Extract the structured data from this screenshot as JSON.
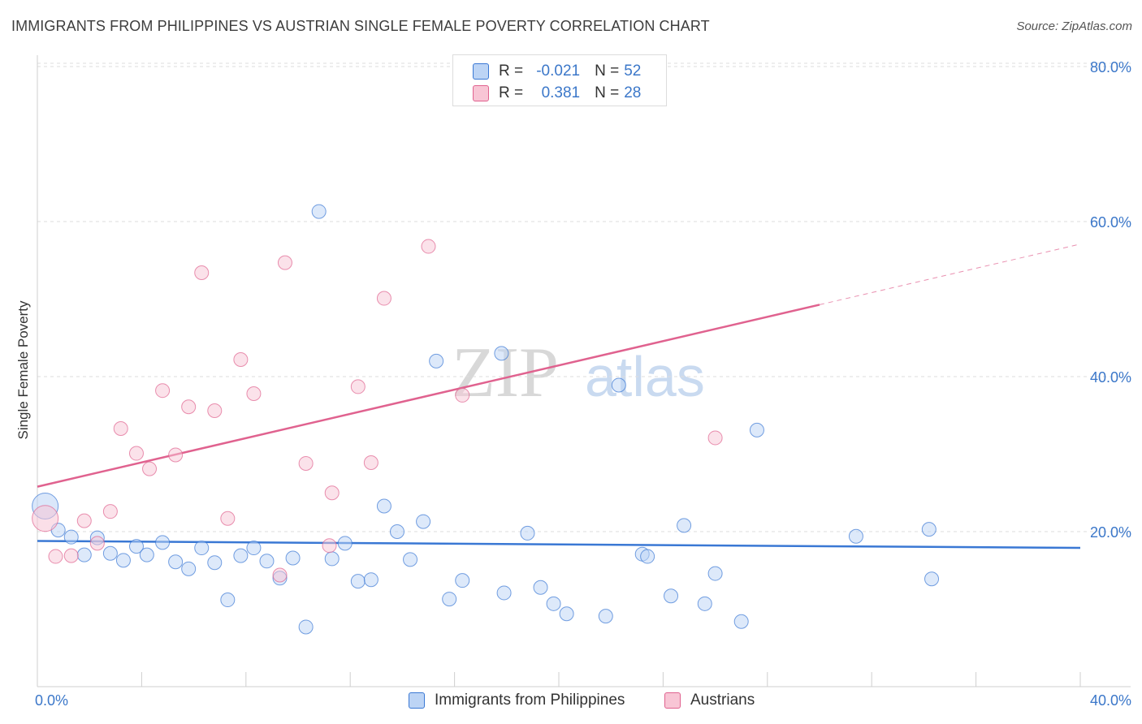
{
  "title": "IMMIGRANTS FROM PHILIPPINES VS AUSTRIAN SINGLE FEMALE POVERTY CORRELATION CHART",
  "source": "Source: ZipAtlas.com",
  "colors": {
    "blue": "#3a78d4",
    "blue_fill": "#bcd4f5",
    "pink": "#e0628f",
    "pink_fill": "#f8c5d5",
    "tick_text": "#3b77c9"
  },
  "legend": {
    "rows": [
      {
        "r_label": "R =",
        "r_value": "-0.021",
        "n_label": "N =",
        "n_value": "52"
      },
      {
        "r_label": "R =",
        "r_value": "0.381",
        "n_label": "N =",
        "n_value": "28"
      }
    ]
  },
  "bottom_legend": {
    "series1": "Immigrants from Philippines",
    "series2": "Austrians"
  },
  "watermark": {
    "part1": "ZIP",
    "part2": "atlas"
  },
  "chart_data": {
    "type": "scatter",
    "title": "IMMIGRANTS FROM PHILIPPINES VS AUSTRIAN SINGLE FEMALE POVERTY CORRELATION CHART",
    "xlabel": "",
    "ylabel": "Single Female Poverty",
    "xlim": [
      0,
      40
    ],
    "ylim": [
      0,
      80
    ],
    "x_tick_labels": [
      "0.0%",
      "40.0%"
    ],
    "y_tick_values": [
      20,
      40,
      60,
      80
    ],
    "y_tick_labels": [
      "20.0%",
      "40.0%",
      "60.0%",
      "80.0%"
    ],
    "grid": true,
    "series": [
      {
        "name": "Immigrants from Philippines",
        "color": "#3a78d4",
        "R": -0.021,
        "N": 52,
        "trend": {
          "x_start": 0,
          "y_start": 18.8,
          "x_end": 40,
          "y_end": 17.9,
          "dashed_from": null
        },
        "points": [
          [
            0.3,
            23.3,
            "big"
          ],
          [
            0.8,
            20.2
          ],
          [
            1.3,
            19.3
          ],
          [
            1.8,
            17.0
          ],
          [
            2.3,
            19.2
          ],
          [
            2.8,
            17.2
          ],
          [
            3.3,
            16.3
          ],
          [
            3.8,
            18.1
          ],
          [
            4.2,
            17.0
          ],
          [
            4.8,
            18.6
          ],
          [
            5.3,
            16.1
          ],
          [
            5.8,
            15.2
          ],
          [
            6.3,
            17.9
          ],
          [
            6.8,
            16.0
          ],
          [
            7.3,
            11.2
          ],
          [
            7.8,
            16.9
          ],
          [
            8.3,
            17.9
          ],
          [
            8.8,
            16.2
          ],
          [
            9.3,
            14.0
          ],
          [
            9.8,
            16.6
          ],
          [
            10.3,
            7.7
          ],
          [
            10.8,
            61.3
          ],
          [
            11.3,
            16.5
          ],
          [
            11.8,
            18.5
          ],
          [
            12.3,
            13.6
          ],
          [
            12.8,
            13.8
          ],
          [
            13.3,
            23.3
          ],
          [
            13.8,
            20.0
          ],
          [
            14.3,
            16.4
          ],
          [
            14.8,
            21.3
          ],
          [
            15.3,
            42.0
          ],
          [
            15.8,
            11.3
          ],
          [
            16.3,
            13.7
          ],
          [
            17.8,
            43.0
          ],
          [
            17.9,
            12.1
          ],
          [
            18.8,
            19.8
          ],
          [
            19.3,
            12.8
          ],
          [
            19.8,
            10.7
          ],
          [
            20.3,
            9.4
          ],
          [
            21.8,
            9.1
          ],
          [
            22.3,
            38.9
          ],
          [
            23.2,
            17.1
          ],
          [
            23.4,
            16.8
          ],
          [
            24.3,
            11.7
          ],
          [
            24.8,
            20.8
          ],
          [
            25.6,
            10.7
          ],
          [
            26.0,
            14.6
          ],
          [
            27.0,
            8.4
          ],
          [
            27.6,
            33.1
          ],
          [
            31.4,
            19.4
          ],
          [
            34.2,
            20.3
          ],
          [
            34.3,
            13.9
          ]
        ]
      },
      {
        "name": "Austrians",
        "color": "#e0628f",
        "R": 0.381,
        "N": 28,
        "trend": {
          "x_start": 0,
          "y_start": 25.8,
          "x_end": 40,
          "y_end": 57.1,
          "dashed_from": 30.0
        },
        "points": [
          [
            0.3,
            21.7,
            "big"
          ],
          [
            0.7,
            16.8
          ],
          [
            1.3,
            16.9
          ],
          [
            1.8,
            21.4
          ],
          [
            2.3,
            18.5
          ],
          [
            2.8,
            22.6
          ],
          [
            3.2,
            33.3
          ],
          [
            3.8,
            30.1
          ],
          [
            4.3,
            28.1
          ],
          [
            4.8,
            38.2
          ],
          [
            5.3,
            29.9
          ],
          [
            5.8,
            36.1
          ],
          [
            6.3,
            53.4
          ],
          [
            6.8,
            35.6
          ],
          [
            7.3,
            21.7
          ],
          [
            7.8,
            42.2
          ],
          [
            8.3,
            37.8
          ],
          [
            9.3,
            14.4
          ],
          [
            9.5,
            54.7
          ],
          [
            10.3,
            28.8
          ],
          [
            11.2,
            18.2
          ],
          [
            11.3,
            25.0
          ],
          [
            12.3,
            38.7
          ],
          [
            12.8,
            28.9
          ],
          [
            13.3,
            50.1
          ],
          [
            15.0,
            56.8
          ],
          [
            16.3,
            37.6
          ],
          [
            26.0,
            32.1
          ]
        ]
      }
    ]
  }
}
